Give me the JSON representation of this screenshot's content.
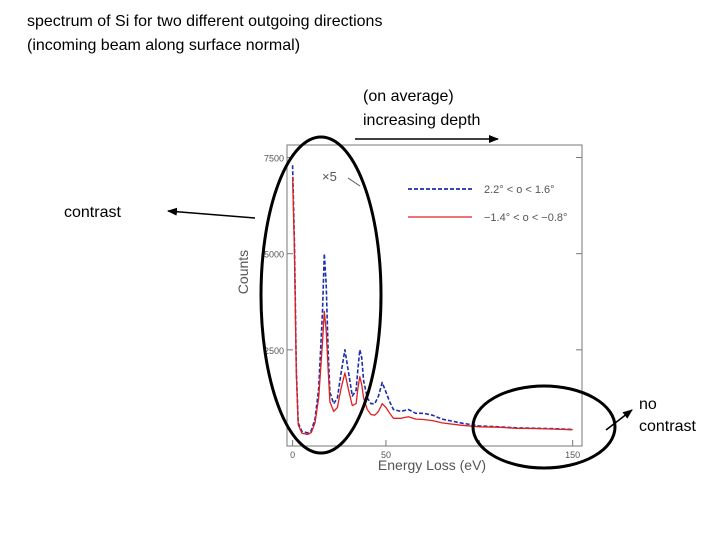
{
  "slide": {
    "title_line1": "spectrum of Si for two different outgoing directions",
    "title_line2": "(incoming beam along surface normal)",
    "annotation_depth_line1": "(on average)",
    "annotation_depth_line2": "increasing depth",
    "annotation_contrast": "contrast",
    "annotation_no_contrast_line1": "no",
    "annotation_no_contrast_line2": "contrast"
  },
  "chart_data": {
    "type": "line",
    "xlabel": "Energy Loss (eV)",
    "ylabel": "Counts",
    "xlim": [
      -3,
      155
    ],
    "ylim": [
      0,
      7800
    ],
    "x_ticks": [
      0,
      50,
      100,
      150
    ],
    "x_tick_labels": [
      "0",
      "50",
      "",
      "150"
    ],
    "y_ticks": [
      2500,
      5000,
      7500
    ],
    "y_tick_labels": [
      "2500",
      "5000",
      "7500"
    ],
    "scale_annotation": "×5",
    "grid": false,
    "legend_position": "top-right",
    "series": [
      {
        "name": "2.2° < o < 1.6°",
        "color": "#1a2fb0",
        "style": "dashed",
        "x": [
          0,
          1,
          2,
          3,
          5,
          8,
          10,
          12,
          14,
          16,
          17,
          18,
          19,
          20,
          22,
          24,
          26,
          28,
          30,
          32,
          34,
          35,
          36,
          37,
          38,
          40,
          42,
          44,
          46,
          48,
          50,
          52,
          54,
          58,
          62,
          66,
          70,
          75,
          80,
          90,
          100,
          110,
          120,
          130,
          140,
          150
        ],
        "values": [
          7300,
          5200,
          2000,
          600,
          380,
          340,
          400,
          700,
          1500,
          3500,
          5000,
          4200,
          2500,
          1400,
          1100,
          1250,
          1900,
          2500,
          1900,
          1300,
          1450,
          2000,
          2500,
          2300,
          1700,
          1250,
          1100,
          1100,
          1300,
          1650,
          1400,
          1150,
          950,
          900,
          950,
          850,
          850,
          800,
          700,
          600,
          520,
          500,
          470,
          460,
          450,
          430
        ]
      },
      {
        "name": "−1.4° < o < −0.8°",
        "color": "#e02020",
        "style": "solid",
        "x": [
          0,
          1,
          2,
          3,
          5,
          8,
          10,
          12,
          14,
          16,
          17,
          18,
          19,
          20,
          22,
          24,
          26,
          28,
          30,
          32,
          34,
          35,
          36,
          37,
          38,
          40,
          42,
          44,
          46,
          48,
          50,
          52,
          54,
          58,
          62,
          66,
          70,
          75,
          80,
          90,
          100,
          110,
          120,
          130,
          140,
          150
        ],
        "values": [
          7000,
          5000,
          1900,
          550,
          330,
          300,
          350,
          600,
          1250,
          2700,
          3500,
          3000,
          2000,
          1150,
          900,
          1000,
          1500,
          1900,
          1450,
          1050,
          1100,
          1500,
          1800,
          1600,
          1250,
          950,
          820,
          800,
          900,
          1100,
          1000,
          850,
          720,
          720,
          760,
          700,
          690,
          660,
          600,
          540,
          500,
          490,
          460,
          455,
          440,
          425
        ]
      }
    ]
  }
}
